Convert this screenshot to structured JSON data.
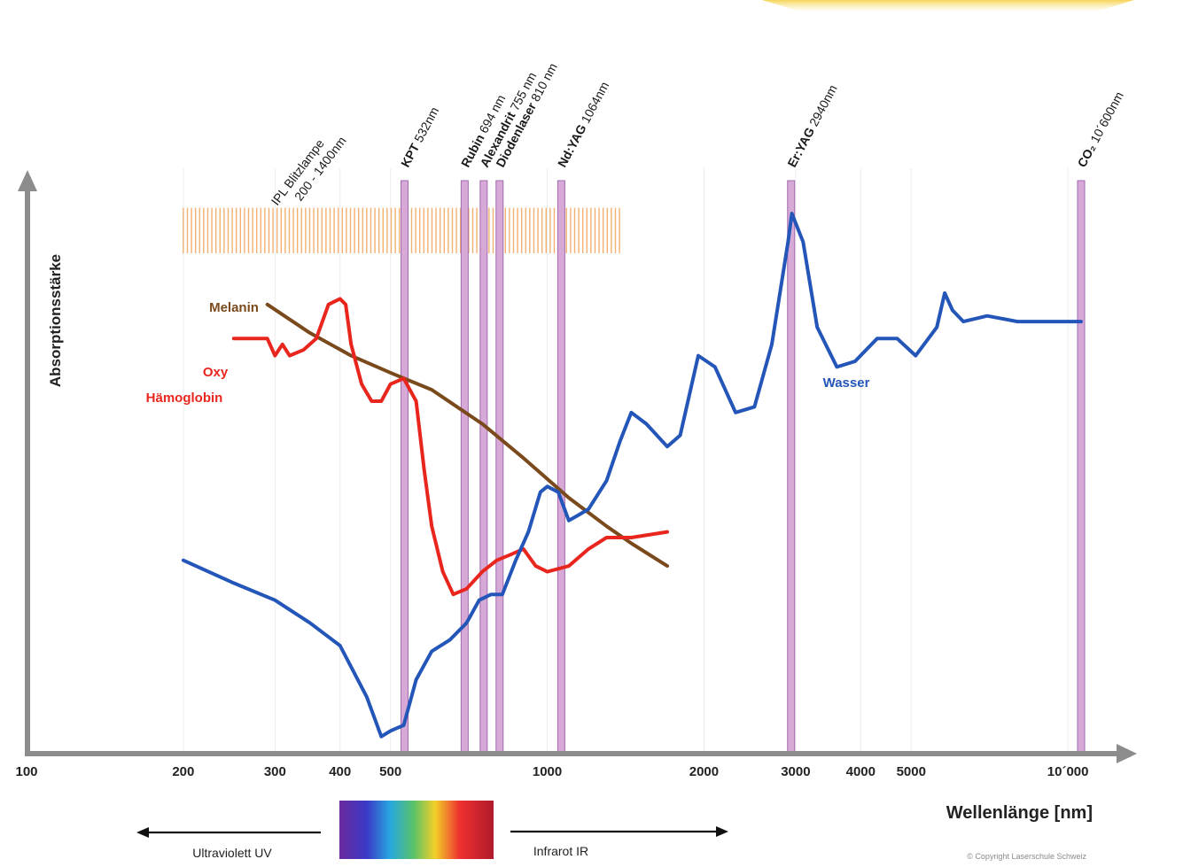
{
  "chart_data": {
    "type": "line",
    "xscale": "log",
    "xlim": [
      100,
      10600
    ],
    "ylim": [
      0,
      1
    ],
    "grid": true,
    "xlabel": "Wellenlänge [nm]",
    "ylabel": "Absorptionsstärke",
    "x_tick_labels": [
      "100",
      "200",
      "300",
      "400",
      "500",
      "1000",
      "2000",
      "3000",
      "4000",
      "5000",
      "10´000"
    ],
    "ipl_band": {
      "label_line1": "IPL Blitzlampe",
      "label_line2": "200 - 1400nm",
      "range": [
        200,
        1400
      ],
      "level": [
        0.88,
        0.96
      ]
    },
    "laser_lines": [
      {
        "name": "KPT",
        "wl_label": "532nm",
        "x": 532
      },
      {
        "name": "Rubin",
        "wl_label": "694 nm",
        "x": 694
      },
      {
        "name": "Alexandrit",
        "wl_label": "755 nm",
        "x": 755
      },
      {
        "name": "Diodenlaser",
        "wl_label": "810 nm",
        "x": 810
      },
      {
        "name": "Nd:YAG",
        "wl_label": "1064nm",
        "x": 1064
      },
      {
        "name": "Er:YAG",
        "wl_label": "2940nm",
        "x": 2940
      },
      {
        "name": "CO₂",
        "wl_label": "10´600nm",
        "x": 10600
      }
    ],
    "series": [
      {
        "name": "Melanin",
        "color": "#7a4a1c",
        "x": [
          290,
          350,
          420,
          500,
          600,
          750,
          900,
          1100,
          1300,
          1450,
          1700
        ],
        "y": [
          0.79,
          0.74,
          0.7,
          0.67,
          0.64,
          0.58,
          0.52,
          0.45,
          0.4,
          0.37,
          0.33
        ]
      },
      {
        "name_line1": "Oxy",
        "name_line2": "Hämoglobin",
        "color": "#e8261e",
        "x": [
          250,
          270,
          290,
          300,
          310,
          320,
          340,
          360,
          380,
          400,
          410,
          420,
          440,
          460,
          480,
          500,
          530,
          560,
          580,
          600,
          630,
          660,
          700,
          750,
          800,
          850,
          900,
          950,
          1000,
          1100,
          1200,
          1300,
          1450,
          1700
        ],
        "y": [
          0.73,
          0.73,
          0.73,
          0.7,
          0.72,
          0.7,
          0.71,
          0.73,
          0.79,
          0.8,
          0.79,
          0.72,
          0.65,
          0.62,
          0.62,
          0.65,
          0.66,
          0.62,
          0.5,
          0.4,
          0.32,
          0.28,
          0.29,
          0.32,
          0.34,
          0.35,
          0.36,
          0.33,
          0.32,
          0.33,
          0.36,
          0.38,
          0.38,
          0.39
        ]
      },
      {
        "name": "Wasser",
        "color": "#2356b8",
        "x": [
          200,
          250,
          300,
          350,
          400,
          450,
          480,
          500,
          530,
          560,
          600,
          650,
          700,
          740,
          780,
          820,
          870,
          920,
          970,
          1000,
          1050,
          1100,
          1150,
          1200,
          1300,
          1380,
          1450,
          1550,
          1700,
          1800,
          1950,
          2100,
          2300,
          2500,
          2700,
          2900,
          2950,
          3100,
          3300,
          3600,
          3900,
          4300,
          4700,
          5100,
          5600,
          5800,
          6000,
          6300,
          7000,
          8000,
          9000,
          10600
        ],
        "y": [
          0.34,
          0.3,
          0.27,
          0.23,
          0.19,
          0.1,
          0.03,
          0.04,
          0.05,
          0.13,
          0.18,
          0.2,
          0.23,
          0.27,
          0.28,
          0.28,
          0.34,
          0.39,
          0.46,
          0.47,
          0.46,
          0.41,
          0.42,
          0.43,
          0.48,
          0.55,
          0.6,
          0.58,
          0.54,
          0.56,
          0.7,
          0.68,
          0.6,
          0.61,
          0.72,
          0.9,
          0.95,
          0.9,
          0.75,
          0.68,
          0.69,
          0.73,
          0.73,
          0.7,
          0.75,
          0.81,
          0.78,
          0.76,
          0.77,
          0.76,
          0.76,
          0.76
        ]
      }
    ],
    "annotations": {
      "uv_label": "Ultraviolett UV",
      "ir_label": "Infrarot IR",
      "copyright": "© Copyright Laserschule Schweiz"
    }
  }
}
